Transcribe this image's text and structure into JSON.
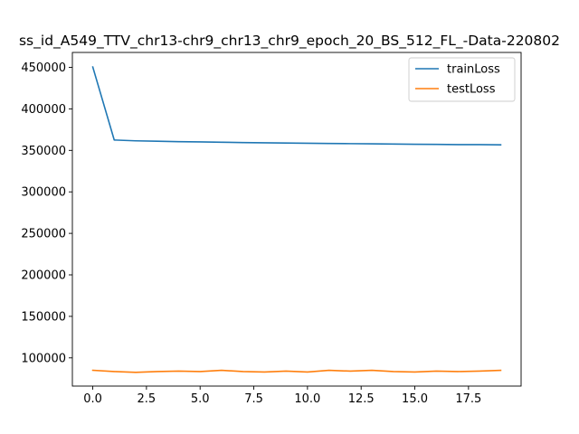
{
  "chart_data": {
    "type": "line",
    "title": "ss_id_A549_TTV_chr13-chr9_chr13_chr9_epoch_20_BS_512_FL_-Data-220802",
    "xlabel": "",
    "ylabel": "",
    "xlim": [
      -0.95,
      19.95
    ],
    "ylim": [
      66000,
      468000
    ],
    "x_ticks": [
      0,
      2.5,
      5,
      7.5,
      10,
      12.5,
      15,
      17.5
    ],
    "x_tick_labels": [
      "0.0",
      "2.5",
      "5.0",
      "7.5",
      "10.0",
      "12.5",
      "15.0",
      "17.5"
    ],
    "y_ticks": [
      100000,
      150000,
      200000,
      250000,
      300000,
      350000,
      400000,
      450000
    ],
    "y_tick_labels": [
      "100000",
      "150000",
      "200000",
      "250000",
      "300000",
      "350000",
      "400000",
      "450000"
    ],
    "grid": false,
    "legend_position": "upper-right",
    "x": [
      0,
      1,
      2,
      3,
      4,
      5,
      6,
      7,
      8,
      9,
      10,
      11,
      12,
      13,
      14,
      15,
      16,
      17,
      18,
      19
    ],
    "series": [
      {
        "name": "trainLoss",
        "color": "#1f77b4",
        "values": [
          450500,
          362500,
          361500,
          361000,
          360500,
          360200,
          359800,
          359400,
          359100,
          358900,
          358600,
          358300,
          358100,
          357900,
          357600,
          357400,
          357200,
          357000,
          356900,
          356700
        ]
      },
      {
        "name": "testLoss",
        "color": "#ff7f0e",
        "values": [
          85000,
          83500,
          82500,
          83500,
          84000,
          83500,
          85000,
          83500,
          83000,
          84000,
          83000,
          85000,
          84000,
          85000,
          83500,
          83000,
          84000,
          83500,
          84000,
          85000
        ]
      }
    ]
  }
}
